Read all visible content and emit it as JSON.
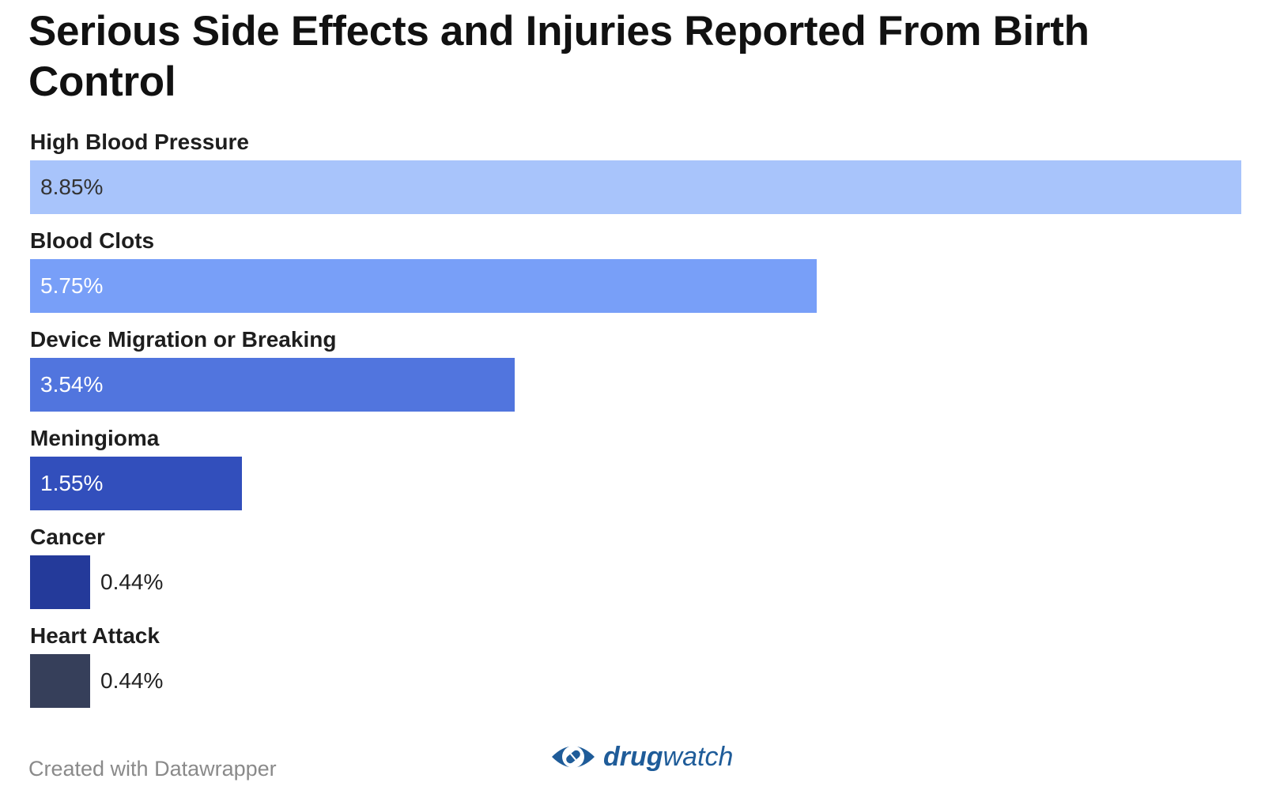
{
  "colors": {
    "bars": [
      "#a8c4fb",
      "#789ff8",
      "#5175de",
      "#324fbc",
      "#243a9a",
      "#363f5a"
    ],
    "logo": "#1f5c99"
  },
  "footer": {
    "credit": "Created with Datawrapper"
  },
  "logo": {
    "brand_bold": "drug",
    "brand_rest": "watch",
    "icon": "eye-pill-icon"
  },
  "chart_data": {
    "type": "bar",
    "orientation": "horizontal",
    "title": "Serious Side Effects and Injuries Reported From Birth Control",
    "categories": [
      "High Blood Pressure",
      "Blood Clots",
      "Device Migration or Breaking",
      "Meningioma",
      "Cancer",
      "Heart Attack"
    ],
    "values": [
      8.85,
      5.75,
      3.54,
      1.55,
      0.44,
      0.44
    ],
    "value_labels": [
      "8.85%",
      "5.75%",
      "3.54%",
      "1.55%",
      "0.44%",
      "0.44%"
    ],
    "xlim": [
      0,
      8.85
    ],
    "grid": false,
    "legend": "none"
  }
}
